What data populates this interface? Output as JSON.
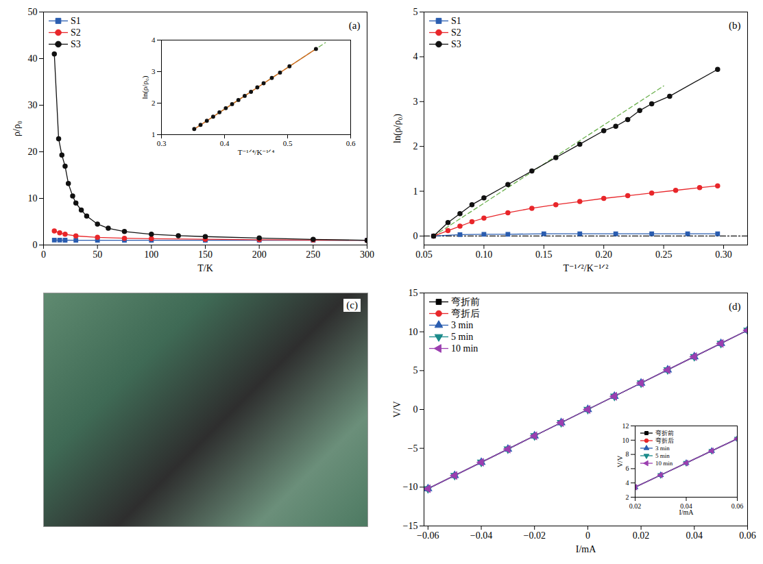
{
  "chart_data": [
    {
      "type": "line",
      "title": "(a)",
      "xlabel": "T/K",
      "ylabel": "ρ/ρ₀",
      "xlim": [
        0,
        300
      ],
      "xticks": [
        0,
        50,
        100,
        150,
        200,
        250,
        300
      ],
      "ylim": [
        0,
        50
      ],
      "yticks": [
        0,
        10,
        20,
        30,
        40,
        50
      ],
      "legend": "top-left",
      "series": [
        {
          "name": "S1",
          "color": "#2a5db0",
          "marker": "square",
          "line_style": "solid",
          "x": [
            10,
            15,
            20,
            30,
            50,
            75,
            100,
            150,
            200,
            250,
            300
          ],
          "values": [
            1.05,
            1.04,
            1.03,
            1.02,
            1.01,
            1.01,
            1.0,
            1.0,
            1.0,
            1.0,
            1.0
          ]
        },
        {
          "name": "S2",
          "color": "#e8262a",
          "marker": "circle",
          "line_style": "solid",
          "x": [
            10,
            15,
            20,
            30,
            50,
            75,
            100,
            150,
            200,
            250,
            300
          ],
          "values": [
            3.0,
            2.6,
            2.3,
            1.95,
            1.65,
            1.45,
            1.35,
            1.22,
            1.13,
            1.06,
            1.0
          ]
        },
        {
          "name": "S3",
          "color": "#111111",
          "marker": "circle",
          "line_style": "solid",
          "x": [
            10,
            14,
            17,
            20,
            23,
            27,
            30,
            35,
            40,
            50,
            60,
            75,
            100,
            125,
            150,
            200,
            250,
            300
          ],
          "values": [
            41,
            22.8,
            19.3,
            16.9,
            13.2,
            10.5,
            9.0,
            7.5,
            6.2,
            4.5,
            3.6,
            2.9,
            2.3,
            2.0,
            1.8,
            1.5,
            1.2,
            1.0
          ]
        }
      ],
      "inset": {
        "type": "line",
        "xlabel": "T⁻¹ᐟ⁴/K⁻¹ᐟ⁴",
        "ylabel": "ln(ρ/ρ₀)",
        "xlim": [
          0.3,
          0.6
        ],
        "xticks": [
          0.3,
          0.4,
          0.5,
          0.6
        ],
        "ylim": [
          1,
          4
        ],
        "yticks": [
          1,
          2,
          3,
          4
        ],
        "series": [
          {
            "color": "#6ab04c",
            "marker": "none",
            "line_style": "dashed",
            "x": [
              0.35,
              0.56
            ],
            "values": [
              1.15,
              3.92
            ]
          },
          {
            "color": "#d2691e",
            "marker": "none",
            "line_style": "solid",
            "x": [
              0.35,
              0.545
            ],
            "values": [
              1.15,
              3.72
            ]
          },
          {
            "color": "#111111",
            "marker": "circle",
            "line_style": "none",
            "x": [
              0.352,
              0.362,
              0.372,
              0.382,
              0.392,
              0.402,
              0.412,
              0.422,
              0.432,
              0.442,
              0.452,
              0.462,
              0.475,
              0.488,
              0.503,
              0.545
            ],
            "values": [
              1.18,
              1.31,
              1.44,
              1.57,
              1.71,
              1.84,
              1.97,
              2.1,
              2.23,
              2.36,
              2.5,
              2.63,
              2.8,
              2.97,
              3.17,
              3.72
            ]
          }
        ]
      }
    },
    {
      "type": "line",
      "title": "(b)",
      "xlabel": "T⁻¹ᐟ²/K⁻¹ᐟ²",
      "ylabel": "ln(ρ/ρ₀)",
      "xlim": [
        0.05,
        0.32
      ],
      "xticks": [
        0.05,
        {
          "value": 0.1,
          "label": "0.10"
        },
        0.15,
        {
          "value": 0.2,
          "label": "0.20"
        },
        0.25,
        {
          "value": 0.3,
          "label": "0.30"
        }
      ],
      "ylim": [
        -0.2,
        5
      ],
      "yticks": [
        0,
        1,
        2,
        3,
        4,
        5
      ],
      "legend": "top-left",
      "series": [
        {
          "color": "#111111",
          "marker": "none",
          "line_style": "dashdot",
          "x": [
            0.05,
            0.32
          ],
          "values": [
            0,
            0
          ]
        },
        {
          "color": "#6ab04c",
          "marker": "none",
          "line_style": "dashed",
          "x": [
            0.058,
            0.25
          ],
          "values": [
            0,
            3.35
          ]
        },
        {
          "name": "S1",
          "color": "#2a5db0",
          "marker": "square",
          "line_style": "solid",
          "x": [
            0.058,
            0.08,
            0.1,
            0.12,
            0.15,
            0.18,
            0.21,
            0.24,
            0.27,
            0.295
          ],
          "values": [
            0,
            0.03,
            0.04,
            0.04,
            0.05,
            0.05,
            0.05,
            0.05,
            0.05,
            0.05
          ]
        },
        {
          "name": "S2",
          "color": "#e8262a",
          "marker": "circle",
          "line_style": "solid",
          "x": [
            0.058,
            0.07,
            0.08,
            0.09,
            0.1,
            0.12,
            0.14,
            0.16,
            0.18,
            0.2,
            0.22,
            0.24,
            0.26,
            0.28,
            0.295
          ],
          "values": [
            0,
            0.12,
            0.22,
            0.32,
            0.4,
            0.52,
            0.62,
            0.7,
            0.77,
            0.84,
            0.9,
            0.96,
            1.02,
            1.08,
            1.12
          ]
        },
        {
          "name": "S3",
          "color": "#111111",
          "marker": "circle",
          "line_style": "solid",
          "x": [
            0.058,
            0.07,
            0.08,
            0.09,
            0.1,
            0.12,
            0.14,
            0.16,
            0.18,
            0.2,
            0.21,
            0.22,
            0.23,
            0.24,
            0.255,
            0.295
          ],
          "values": [
            0,
            0.3,
            0.5,
            0.7,
            0.85,
            1.15,
            1.45,
            1.75,
            2.05,
            2.35,
            2.45,
            2.6,
            2.8,
            2.95,
            3.12,
            3.72
          ]
        }
      ]
    },
    {
      "type": "image",
      "title": "(c)"
    },
    {
      "type": "line",
      "title": "(d)",
      "xlabel": "I/mA",
      "ylabel": "V/V",
      "xlim": [
        -0.0615,
        0.06
      ],
      "xticks": [
        {
          "value": -0.06,
          "label": "−0.06"
        },
        {
          "value": -0.04,
          "label": "−0.04"
        },
        {
          "value": -0.02,
          "label": "−0.02"
        },
        0,
        0.02,
        0.04,
        0.06
      ],
      "ylim": [
        -15,
        15
      ],
      "yticks": [
        {
          "value": -15,
          "label": "−15"
        },
        {
          "value": -10,
          "label": "−10"
        },
        {
          "value": -5,
          "label": "−5"
        },
        0,
        5,
        10,
        15
      ],
      "legend": "top-left",
      "series": [
        {
          "name": "弯折前",
          "color": "#000000",
          "marker": "square",
          "line_style": "solid",
          "x": [
            -0.06,
            -0.05,
            -0.04,
            -0.03,
            -0.02,
            -0.01,
            0,
            0.01,
            0.02,
            0.03,
            0.04,
            0.05,
            0.06
          ],
          "values": [
            -10.2,
            -8.5,
            -6.8,
            -5.1,
            -3.4,
            -1.7,
            0,
            1.7,
            3.4,
            5.1,
            6.8,
            8.5,
            10.2
          ]
        },
        {
          "name": "弯折后",
          "color": "#e8262a",
          "marker": "circle",
          "line_style": "solid",
          "x": [
            -0.06,
            -0.05,
            -0.04,
            -0.03,
            -0.02,
            -0.01,
            0,
            0.01,
            0.02,
            0.03,
            0.04,
            0.05,
            0.06
          ],
          "values": [
            -10.2,
            -8.5,
            -6.8,
            -5.1,
            -3.4,
            -1.7,
            0,
            1.7,
            3.4,
            5.1,
            6.8,
            8.5,
            10.2
          ]
        },
        {
          "name": "3 min",
          "color": "#2a5db0",
          "marker": "triangle-up",
          "line_style": "solid",
          "x": [
            -0.06,
            -0.05,
            -0.04,
            -0.03,
            -0.02,
            -0.01,
            0,
            0.01,
            0.02,
            0.03,
            0.04,
            0.05,
            0.06
          ],
          "values": [
            -10.2,
            -8.5,
            -6.8,
            -5.1,
            -3.4,
            -1.7,
            0,
            1.7,
            3.4,
            5.1,
            6.8,
            8.5,
            10.2
          ]
        },
        {
          "name": "5 min",
          "color": "#1a8a8a",
          "marker": "triangle-down",
          "line_style": "solid",
          "x": [
            -0.06,
            -0.05,
            -0.04,
            -0.03,
            -0.02,
            -0.01,
            0,
            0.01,
            0.02,
            0.03,
            0.04,
            0.05,
            0.06
          ],
          "values": [
            -10.2,
            -8.5,
            -6.8,
            -5.1,
            -3.4,
            -1.7,
            0,
            1.7,
            3.4,
            5.1,
            6.8,
            8.5,
            10.2
          ]
        },
        {
          "name": "10 min",
          "color": "#9b3fb0",
          "marker": "triangle-left",
          "line_style": "solid",
          "x": [
            -0.06,
            -0.05,
            -0.04,
            -0.03,
            -0.02,
            -0.01,
            0,
            0.01,
            0.02,
            0.03,
            0.04,
            0.05,
            0.06
          ],
          "values": [
            -10.2,
            -8.5,
            -6.8,
            -5.1,
            -3.4,
            -1.7,
            0,
            1.7,
            3.4,
            5.1,
            6.8,
            8.5,
            10.2
          ]
        }
      ],
      "inset": {
        "type": "line",
        "xlabel": "I/mA",
        "ylabel": "V/V",
        "xlim": [
          0.02,
          0.06
        ],
        "xticks": [
          0.02,
          0.04,
          0.06
        ],
        "ylim": [
          2,
          12
        ],
        "yticks": [
          2,
          4,
          6,
          8,
          10,
          12
        ],
        "legend": "top-left",
        "series": [
          {
            "name": "弯折前",
            "color": "#000000",
            "marker": "square",
            "line_style": "solid",
            "x": [
              0.02,
              0.03,
              0.04,
              0.05,
              0.06
            ],
            "values": [
              3.4,
              5.1,
              6.8,
              8.5,
              10.2
            ]
          },
          {
            "name": "弯折后",
            "color": "#e8262a",
            "marker": "circle",
            "line_style": "solid",
            "x": [
              0.02,
              0.03,
              0.04,
              0.05,
              0.06
            ],
            "values": [
              3.4,
              5.1,
              6.8,
              8.5,
              10.2
            ]
          },
          {
            "name": "3 min",
            "color": "#2a5db0",
            "marker": "triangle-up",
            "line_style": "solid",
            "x": [
              0.02,
              0.03,
              0.04,
              0.05,
              0.06
            ],
            "values": [
              3.4,
              5.1,
              6.8,
              8.5,
              10.2
            ]
          },
          {
            "name": "5 min",
            "color": "#1a8a8a",
            "marker": "triangle-down",
            "line_style": "solid",
            "x": [
              0.02,
              0.03,
              0.04,
              0.05,
              0.06
            ],
            "values": [
              3.4,
              5.1,
              6.8,
              8.5,
              10.2
            ]
          },
          {
            "name": "10 min",
            "color": "#9b3fb0",
            "marker": "triangle-left",
            "line_style": "solid",
            "x": [
              0.02,
              0.03,
              0.04,
              0.05,
              0.06
            ],
            "values": [
              3.4,
              5.1,
              6.8,
              8.5,
              10.2
            ]
          }
        ]
      }
    }
  ]
}
